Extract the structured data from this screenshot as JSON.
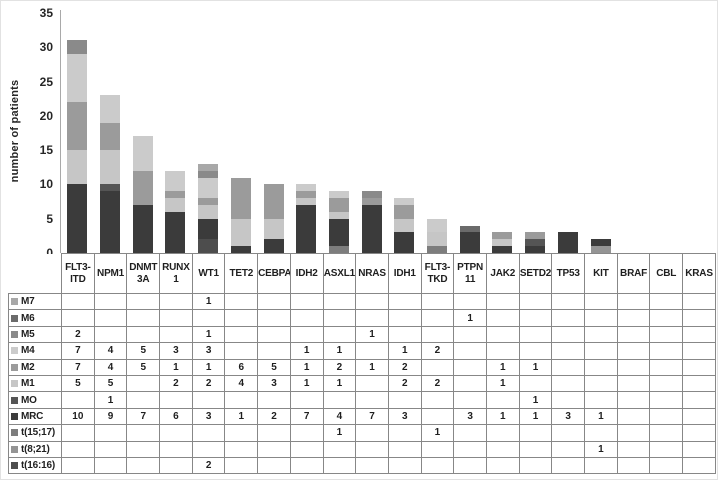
{
  "chart_data": {
    "type": "bar",
    "stacked": true,
    "ylabel": "number of patients",
    "ylim": [
      0,
      35
    ],
    "yticks": [
      0,
      5,
      10,
      15,
      20,
      25,
      30,
      35
    ],
    "grid": false,
    "legend_position": "table-left",
    "categories": [
      "FLT3-ITD",
      "NPM1",
      "DNMT3A",
      "RUNX1",
      "WT1",
      "TET2",
      "CEBPA",
      "IDH2",
      "ASXL1",
      "NRAS",
      "IDH1",
      "FLT3-TKD",
      "PTPN11",
      "JAK2",
      "SETD2",
      "TP53",
      "KIT",
      "BRAF",
      "CBL",
      "KRAS"
    ],
    "category_label_lines": [
      [
        "FLT3-",
        "ITD"
      ],
      [
        "NPM1"
      ],
      [
        "DNMT",
        "3A"
      ],
      [
        "RUNX",
        "1"
      ],
      [
        "WT1"
      ],
      [
        "TET2"
      ],
      [
        "CEBPA"
      ],
      [
        "IDH2"
      ],
      [
        "ASXL1"
      ],
      [
        "NRAS"
      ],
      [
        "IDH1"
      ],
      [
        "FLT3-",
        "TKD"
      ],
      [
        "PTPN",
        "11"
      ],
      [
        "JAK2"
      ],
      [
        "SETD2"
      ],
      [
        "TP53"
      ],
      [
        "KIT"
      ],
      [
        "BRAF"
      ],
      [
        "CBL"
      ],
      [
        "KRAS"
      ]
    ],
    "series": [
      {
        "name": "M7",
        "color": "#a8a8a8",
        "values": [
          0,
          0,
          0,
          0,
          1,
          0,
          0,
          0,
          0,
          0,
          0,
          0,
          0,
          0,
          0,
          0,
          0,
          0,
          0,
          0
        ]
      },
      {
        "name": "M6",
        "color": "#6b6b6b",
        "values": [
          0,
          0,
          0,
          0,
          0,
          0,
          0,
          0,
          0,
          0,
          0,
          0,
          1,
          0,
          0,
          0,
          0,
          0,
          0,
          0
        ]
      },
      {
        "name": "M5",
        "color": "#8a8a8a",
        "values": [
          2,
          0,
          0,
          0,
          1,
          0,
          0,
          0,
          0,
          1,
          0,
          0,
          0,
          0,
          0,
          0,
          0,
          0,
          0,
          0
        ]
      },
      {
        "name": "M4",
        "color": "#cbcbcb",
        "values": [
          7,
          4,
          5,
          3,
          3,
          0,
          0,
          1,
          1,
          0,
          1,
          2,
          0,
          0,
          0,
          0,
          0,
          0,
          0,
          0
        ]
      },
      {
        "name": "M2",
        "color": "#9b9b9b",
        "values": [
          7,
          4,
          5,
          1,
          1,
          6,
          5,
          1,
          2,
          1,
          2,
          0,
          0,
          1,
          1,
          0,
          0,
          0,
          0,
          0
        ]
      },
      {
        "name": "M1",
        "color": "#c6c6c6",
        "values": [
          5,
          5,
          0,
          2,
          2,
          4,
          3,
          1,
          1,
          0,
          2,
          2,
          0,
          1,
          0,
          0,
          0,
          0,
          0,
          0
        ]
      },
      {
        "name": "MO",
        "color": "#555555",
        "values": [
          0,
          1,
          0,
          0,
          0,
          0,
          0,
          0,
          0,
          0,
          0,
          0,
          0,
          0,
          1,
          0,
          0,
          0,
          0,
          0
        ]
      },
      {
        "name": "MRC",
        "color": "#3b3b3b",
        "values": [
          10,
          9,
          7,
          6,
          3,
          1,
          2,
          7,
          4,
          7,
          3,
          0,
          3,
          1,
          1,
          3,
          1,
          0,
          0,
          0
        ]
      },
      {
        "name": "t(15;17)",
        "color": "#7d7d7d",
        "values": [
          0,
          0,
          0,
          0,
          0,
          0,
          0,
          0,
          1,
          0,
          0,
          1,
          0,
          0,
          0,
          0,
          0,
          0,
          0,
          0
        ]
      },
      {
        "name": "t(8;21)",
        "color": "#949494",
        "values": [
          0,
          0,
          0,
          0,
          0,
          0,
          0,
          0,
          0,
          0,
          0,
          0,
          0,
          0,
          0,
          0,
          1,
          0,
          0,
          0
        ]
      },
      {
        "name": "t(16:16)",
        "color": "#4d4d4d",
        "values": [
          0,
          0,
          0,
          0,
          2,
          0,
          0,
          0,
          0,
          0,
          0,
          0,
          0,
          0,
          0,
          0,
          0,
          0,
          0,
          0
        ]
      }
    ],
    "stack_order_bottom_to_top": [
      "t(16:16)",
      "t(8;21)",
      "t(15;17)",
      "MRC",
      "MO",
      "M1",
      "M2",
      "M4",
      "M5",
      "M6",
      "M7"
    ],
    "totals": [
      31,
      23,
      17,
      12,
      13,
      11,
      10,
      10,
      9,
      9,
      8,
      5,
      4,
      3,
      3,
      3,
      2,
      0,
      0,
      0
    ]
  }
}
